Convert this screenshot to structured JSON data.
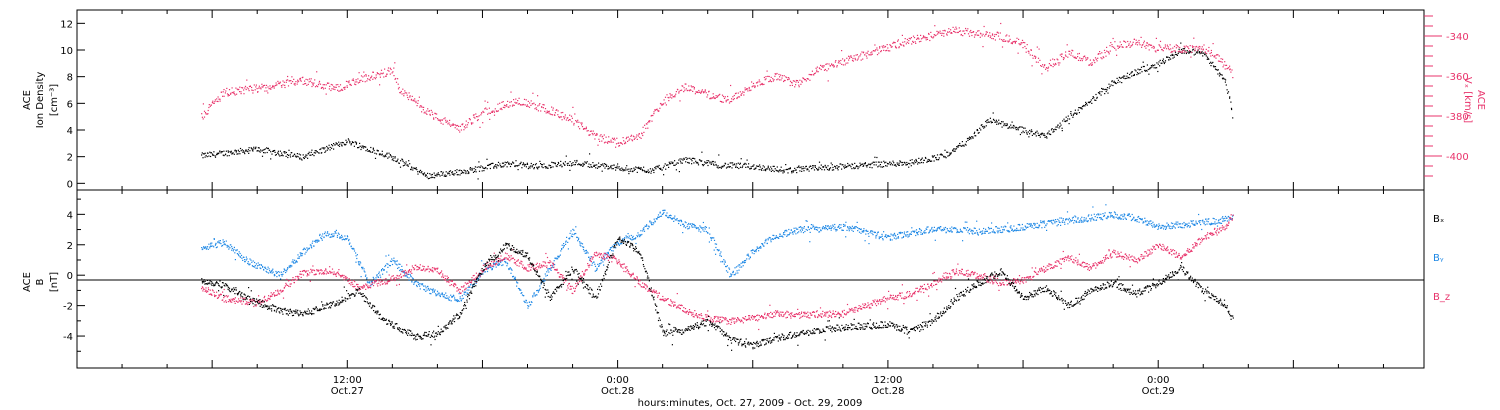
{
  "chart_data": [
    {
      "type": "scatter",
      "panel": "top",
      "ylabel_left": [
        "ACE",
        "Ion Density",
        "[cm⁻³]"
      ],
      "ylabel_right": [
        "ACE",
        "Vₓ [km/s]"
      ],
      "yticks_left": [
        "0",
        "2",
        "4",
        "6",
        "8",
        "10",
        "12"
      ],
      "yticks_right": [
        "-340",
        "-360",
        "-380",
        "-400"
      ],
      "ylim_left": [
        -0.5,
        13
      ],
      "ylim_right": [
        -417,
        -327
      ],
      "series": [
        {
          "axis": "left",
          "color": "#000000",
          "anchors": [
            [
              5.5,
              2.1
            ],
            [
              8,
              2.6
            ],
            [
              10,
              2.0
            ],
            [
              12,
              3.2
            ],
            [
              14,
              2.0
            ],
            [
              15.5,
              0.6
            ],
            [
              17,
              0.9
            ],
            [
              19,
              1.5
            ],
            [
              20.5,
              1.3
            ],
            [
              22,
              1.6
            ],
            [
              24,
              1.2
            ],
            [
              25.5,
              1.0
            ],
            [
              27,
              1.8
            ],
            [
              28.5,
              1.4
            ],
            [
              30,
              1.3
            ],
            [
              31.5,
              1.0
            ],
            [
              33,
              1.2
            ],
            [
              35,
              1.4
            ],
            [
              37,
              1.6
            ],
            [
              38.5,
              2.1
            ],
            [
              39.5,
              3.2
            ],
            [
              40.5,
              4.8
            ],
            [
              41.5,
              4.2
            ],
            [
              43,
              3.6
            ],
            [
              44,
              5.0
            ],
            [
              45,
              6.2
            ],
            [
              46,
              7.6
            ],
            [
              47,
              8.4
            ],
            [
              48,
              9.0
            ],
            [
              49,
              10.0
            ],
            [
              50,
              9.8
            ],
            [
              51,
              7.6
            ],
            [
              51.3,
              5.0
            ]
          ]
        },
        {
          "axis": "right",
          "color": "#e8336b",
          "anchors": [
            [
              5.5,
              -380
            ],
            [
              6.5,
              -368
            ],
            [
              8,
              -366
            ],
            [
              10,
              -362
            ],
            [
              11.5,
              -366
            ],
            [
              13,
              -360
            ],
            [
              14,
              -357
            ],
            [
              14.3,
              -366
            ],
            [
              15,
              -373
            ],
            [
              16,
              -381
            ],
            [
              17,
              -386
            ],
            [
              18,
              -378
            ],
            [
              19.5,
              -372
            ],
            [
              21,
              -377
            ],
            [
              22,
              -382
            ],
            [
              23,
              -390
            ],
            [
              24,
              -393
            ],
            [
              25,
              -389
            ],
            [
              26,
              -372
            ],
            [
              27,
              -365
            ],
            [
              28,
              -369
            ],
            [
              29,
              -372
            ],
            [
              30,
              -364
            ],
            [
              31,
              -360
            ],
            [
              32,
              -364
            ],
            [
              33,
              -356
            ],
            [
              35,
              -349
            ],
            [
              37,
              -342
            ],
            [
              39,
              -337
            ],
            [
              40,
              -339
            ],
            [
              41,
              -340
            ],
            [
              42,
              -344
            ],
            [
              43,
              -356
            ],
            [
              44,
              -348
            ],
            [
              45,
              -353
            ],
            [
              46,
              -345
            ],
            [
              47,
              -343
            ],
            [
              48,
              -346
            ],
            [
              49,
              -346
            ],
            [
              50,
              -346
            ],
            [
              50.5,
              -349
            ],
            [
              51,
              -355
            ],
            [
              51.3,
              -359
            ]
          ]
        }
      ]
    },
    {
      "type": "scatter",
      "panel": "bottom",
      "ylabel_left": [
        "ACE",
        "B",
        "[nT]"
      ],
      "yticks_left": [
        "-4",
        "-2",
        "0",
        "2",
        "4"
      ],
      "ylim": [
        -6.1,
        5.6
      ],
      "legend_position": "right",
      "series": [
        {
          "name": "Bₓ",
          "color": "#000000",
          "anchors": [
            [
              5.5,
              -0.3
            ],
            [
              6.5,
              -0.6
            ],
            [
              7.5,
              -1.5
            ],
            [
              9,
              -2.3
            ],
            [
              10,
              -2.5
            ],
            [
              11.5,
              -1.8
            ],
            [
              12.5,
              -1.0
            ],
            [
              13.5,
              -2.8
            ],
            [
              15,
              -4.0
            ],
            [
              16,
              -3.8
            ],
            [
              17,
              -2.5
            ],
            [
              18,
              0.5
            ],
            [
              19,
              2.0
            ],
            [
              20,
              1.3
            ],
            [
              21,
              -1.5
            ],
            [
              22,
              0.5
            ],
            [
              23,
              -1.5
            ],
            [
              24,
              2.5
            ],
            [
              25,
              1.5
            ],
            [
              26,
              -3.8
            ],
            [
              27,
              -3.6
            ],
            [
              28,
              -3.0
            ],
            [
              29,
              -4.2
            ],
            [
              30,
              -4.6
            ],
            [
              31,
              -4.1
            ],
            [
              32,
              -3.8
            ],
            [
              34,
              -3.4
            ],
            [
              36,
              -3.2
            ],
            [
              37,
              -3.7
            ],
            [
              38,
              -3.0
            ],
            [
              39,
              -1.5
            ],
            [
              40,
              -0.5
            ],
            [
              41,
              0.3
            ],
            [
              42,
              -1.5
            ],
            [
              43,
              -0.8
            ],
            [
              44,
              -2.0
            ],
            [
              45,
              -1.0
            ],
            [
              46,
              -0.5
            ],
            [
              47,
              -1.2
            ],
            [
              48,
              -0.5
            ],
            [
              49,
              0.5
            ],
            [
              50,
              -1.0
            ],
            [
              51,
              -2.0
            ],
            [
              51.3,
              -2.7
            ]
          ]
        },
        {
          "name": "Bᵧ",
          "color": "#1e88e5",
          "anchors": [
            [
              5.5,
              1.8
            ],
            [
              6.5,
              2.2
            ],
            [
              7.5,
              1.0
            ],
            [
              9,
              0.0
            ],
            [
              10,
              1.5
            ],
            [
              11,
              2.8
            ],
            [
              12,
              2.5
            ],
            [
              13,
              -0.6
            ],
            [
              14,
              1.0
            ],
            [
              15,
              -0.5
            ],
            [
              16,
              -1.2
            ],
            [
              17,
              -1.6
            ],
            [
              18,
              0.3
            ],
            [
              19,
              1.0
            ],
            [
              20,
              -2.0
            ],
            [
              21,
              0.5
            ],
            [
              22,
              3.0
            ],
            [
              23,
              0.5
            ],
            [
              24,
              2.2
            ],
            [
              25,
              2.8
            ],
            [
              26,
              4.2
            ],
            [
              27,
              3.3
            ],
            [
              28,
              3.0
            ],
            [
              29,
              0.0
            ],
            [
              30,
              1.6
            ],
            [
              31,
              2.6
            ],
            [
              32,
              3.0
            ],
            [
              34,
              3.2
            ],
            [
              36,
              2.5
            ],
            [
              37,
              2.8
            ],
            [
              38,
              3.1
            ],
            [
              40,
              2.9
            ],
            [
              42,
              3.2
            ],
            [
              44,
              3.6
            ],
            [
              46,
              4.0
            ],
            [
              47,
              3.8
            ],
            [
              48,
              3.2
            ],
            [
              50,
              3.5
            ],
            [
              51,
              3.7
            ],
            [
              51.3,
              3.8
            ]
          ]
        },
        {
          "name": "B_z",
          "color": "#e8336b",
          "anchors": [
            [
              5.5,
              -0.8
            ],
            [
              6.5,
              -1.5
            ],
            [
              8,
              -1.8
            ],
            [
              9,
              -1.0
            ],
            [
              10,
              0.2
            ],
            [
              11.5,
              0.3
            ],
            [
              12.5,
              -0.8
            ],
            [
              14,
              -0.2
            ],
            [
              15,
              0.6
            ],
            [
              16,
              0.3
            ],
            [
              17,
              -1.0
            ],
            [
              18,
              0.5
            ],
            [
              19,
              1.3
            ],
            [
              20,
              0.5
            ],
            [
              21,
              0.8
            ],
            [
              22,
              -1.0
            ],
            [
              23,
              1.5
            ],
            [
              24,
              1.0
            ],
            [
              25,
              -0.5
            ],
            [
              26,
              -1.5
            ],
            [
              27,
              -2.3
            ],
            [
              28,
              -2.8
            ],
            [
              29,
              -3.0
            ],
            [
              30,
              -2.8
            ],
            [
              31,
              -2.5
            ],
            [
              32,
              -2.6
            ],
            [
              34,
              -2.5
            ],
            [
              35,
              -2.0
            ],
            [
              36,
              -1.5
            ],
            [
              37,
              -1.2
            ],
            [
              38,
              -0.5
            ],
            [
              39,
              0.3
            ],
            [
              40,
              0.0
            ],
            [
              41,
              -0.5
            ],
            [
              42,
              -0.3
            ],
            [
              43,
              0.5
            ],
            [
              44,
              1.2
            ],
            [
              45,
              0.5
            ],
            [
              46,
              1.5
            ],
            [
              47,
              1.0
            ],
            [
              48,
              2.0
            ],
            [
              49,
              1.2
            ],
            [
              50,
              2.5
            ],
            [
              51,
              3.3
            ],
            [
              51.3,
              3.8
            ]
          ]
        }
      ]
    }
  ],
  "xaxis": {
    "tick_labels": [
      {
        "t": 12,
        "line1": "12:00",
        "line2": "Oct.27"
      },
      {
        "t": 24,
        "line1": "0:00",
        "line2": "Oct.28"
      },
      {
        "t": 36,
        "line1": "12:00",
        "line2": "Oct.28"
      },
      {
        "t": 48,
        "line1": "0:00",
        "line2": "Oct.29"
      }
    ],
    "xlabel": "hours:minutes, Oct. 27, 2009 - Oct. 29, 2009"
  },
  "colors": {
    "bx": "#000000",
    "by": "#1e88e5",
    "bz": "#e8336b",
    "density": "#000000",
    "vx": "#e8336b"
  }
}
